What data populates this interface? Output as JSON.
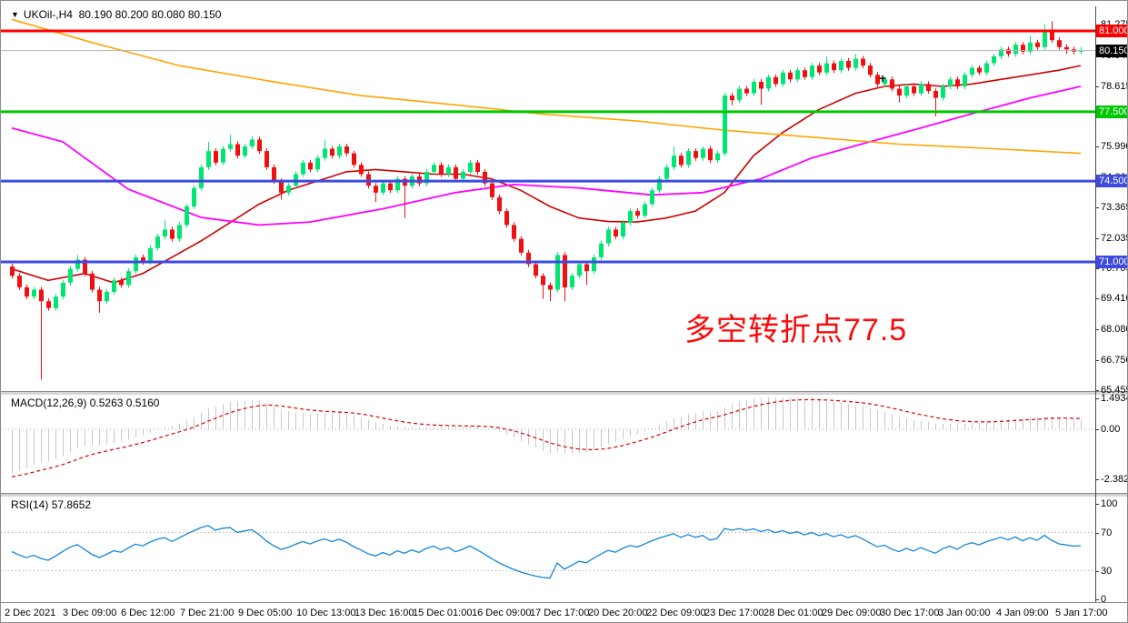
{
  "window": {
    "dropdown_icon": "▼",
    "symbol_title": "UKOil-,H4",
    "ohlc_readout": "80.190 80.200 80.080 80.150"
  },
  "main_chart": {
    "price_axis_ticks": [
      "81.275",
      "79.945",
      "78.615",
      "77.320",
      "75.990",
      "74.660",
      "73.365",
      "72.035",
      "70.705",
      "69.410",
      "68.080",
      "66.750",
      "65.455"
    ],
    "price_line_labels": [
      {
        "text": "81.000",
        "price": 81.0,
        "bg": "#FF0000"
      },
      {
        "text": "80.150",
        "price": 80.15,
        "bg": "#000000"
      },
      {
        "text": "77.500",
        "price": 77.5,
        "bg": "#00C800"
      },
      {
        "text": "74.500",
        "price": 74.5,
        "bg": "#3F4BDE"
      },
      {
        "text": "71.000",
        "price": 71.0,
        "bg": "#3F4BDE"
      }
    ],
    "annotation": {
      "text": "多空转折点77.5",
      "color": "#FA0A0A"
    },
    "plus_marker": "+"
  },
  "macd_panel": {
    "label": "MACD(12,26,9)",
    "values": "0.5263 0.5160",
    "axis_ticks": [
      "1.4934",
      "0.00",
      "-2.3824"
    ]
  },
  "rsi_panel": {
    "label": "RSI(14)",
    "value": "57.8652",
    "axis_ticks": [
      "100",
      "70",
      "30",
      "0"
    ]
  },
  "time_axis": {
    "labels": [
      "2 Dec 2021",
      "3 Dec 09:00",
      "6 Dec 12:00",
      "7 Dec 21:00",
      "9 Dec 05:00",
      "10 Dec 13:00",
      "13 Dec 16:00",
      "15 Dec 01:00",
      "16 Dec 09:00",
      "17 Dec 17:00",
      "20 Dec 20:00",
      "22 Dec 09:00",
      "23 Dec 17:00",
      "28 Dec 01:00",
      "29 Dec 09:00",
      "30 Dec 17:00",
      "3 Jan 00:00",
      "4 Jan 09:00",
      "5 Jan 17:00"
    ]
  },
  "chart_data": {
    "type": "candlestick",
    "symbol": "UKOil",
    "timeframe": "H4",
    "title": "UKOil-,H4 80.190 80.200 80.080 80.150",
    "price_range": [
      65.455,
      81.275
    ],
    "colors": {
      "bull": "#00E673",
      "bear": "#EF1010",
      "current_price_line": "#B4B4B4",
      "macd_hist": "#C8C8C8",
      "macd_signal": "#DD0000",
      "rsi_line": "#1585D8"
    },
    "h_lines": [
      {
        "price": 81.0,
        "color": "#FF0000",
        "width": 3
      },
      {
        "price": 77.5,
        "color": "#00C800",
        "width": 3
      },
      {
        "price": 74.5,
        "color": "#3F4BDE",
        "width": 3
      },
      {
        "price": 71.0,
        "color": "#3F4BDE",
        "width": 3
      }
    ],
    "current_price": 80.15,
    "candles_ohlc": [
      [
        70.8,
        70.92,
        70.28,
        70.4
      ],
      [
        70.4,
        70.52,
        69.78,
        69.9
      ],
      [
        69.9,
        70.02,
        69.38,
        69.5
      ],
      [
        69.5,
        69.92,
        69.38,
        69.8
      ],
      [
        69.8,
        69.92,
        65.9,
        69.3
      ],
      [
        69.3,
        69.42,
        68.88,
        69.0
      ],
      [
        69.0,
        69.62,
        68.88,
        69.5
      ],
      [
        69.5,
        70.22,
        69.38,
        70.1
      ],
      [
        70.1,
        70.82,
        69.98,
        70.7
      ],
      [
        70.7,
        71.3,
        70.58,
        71.1
      ],
      [
        71.1,
        71.22,
        70.38,
        70.5
      ],
      [
        70.5,
        70.62,
        69.68,
        69.8
      ],
      [
        69.8,
        69.92,
        68.8,
        69.3
      ],
      [
        69.3,
        69.82,
        69.18,
        69.7
      ],
      [
        69.7,
        70.32,
        69.58,
        70.2
      ],
      [
        70.2,
        70.32,
        69.88,
        70.0
      ],
      [
        70.0,
        70.72,
        69.88,
        70.6
      ],
      [
        70.6,
        71.32,
        70.48,
        71.2
      ],
      [
        71.2,
        71.32,
        70.88,
        71.0
      ],
      [
        71.0,
        71.72,
        70.88,
        71.6
      ],
      [
        71.6,
        72.22,
        71.48,
        72.1
      ],
      [
        72.1,
        72.8,
        71.98,
        72.4
      ],
      [
        72.4,
        72.52,
        71.88,
        72.0
      ],
      [
        72.0,
        72.72,
        71.88,
        72.6
      ],
      [
        72.6,
        73.52,
        72.48,
        73.4
      ],
      [
        73.4,
        74.32,
        73.28,
        74.2
      ],
      [
        74.2,
        75.22,
        74.08,
        75.1
      ],
      [
        75.1,
        76.2,
        74.98,
        75.8
      ],
      [
        75.8,
        75.92,
        75.18,
        75.3
      ],
      [
        75.3,
        76.02,
        75.18,
        75.9
      ],
      [
        75.9,
        76.5,
        75.78,
        76.1
      ],
      [
        76.1,
        76.22,
        75.48,
        75.6
      ],
      [
        75.6,
        76.12,
        75.48,
        76.0
      ],
      [
        76.0,
        76.42,
        75.88,
        76.3
      ],
      [
        76.3,
        76.42,
        75.68,
        75.8
      ],
      [
        75.8,
        75.92,
        74.98,
        75.1
      ],
      [
        75.1,
        75.22,
        74.38,
        74.5
      ],
      [
        74.5,
        74.62,
        73.7,
        74.0
      ],
      [
        74.0,
        74.42,
        73.88,
        74.3
      ],
      [
        74.3,
        74.92,
        74.18,
        74.8
      ],
      [
        74.8,
        75.42,
        74.68,
        75.3
      ],
      [
        75.3,
        75.42,
        74.88,
        75.0
      ],
      [
        75.0,
        75.62,
        74.88,
        75.5
      ],
      [
        75.5,
        76.3,
        75.38,
        75.9
      ],
      [
        75.9,
        76.02,
        75.48,
        75.6
      ],
      [
        75.6,
        76.12,
        75.48,
        76.0
      ],
      [
        76.0,
        76.12,
        75.58,
        75.7
      ],
      [
        75.7,
        75.82,
        75.08,
        75.2
      ],
      [
        75.2,
        75.32,
        74.68,
        74.8
      ],
      [
        74.8,
        74.92,
        74.18,
        74.3
      ],
      [
        74.3,
        74.42,
        73.6,
        74.0
      ],
      [
        74.0,
        74.52,
        73.88,
        74.4
      ],
      [
        74.4,
        74.52,
        73.98,
        74.1
      ],
      [
        74.1,
        74.72,
        73.98,
        74.6
      ],
      [
        74.6,
        74.72,
        72.9,
        74.3
      ],
      [
        74.3,
        74.82,
        74.18,
        74.7
      ],
      [
        74.7,
        74.82,
        74.28,
        74.4
      ],
      [
        74.4,
        75.02,
        74.28,
        74.9
      ],
      [
        74.9,
        75.32,
        74.78,
        75.2
      ],
      [
        75.2,
        75.32,
        74.68,
        74.8
      ],
      [
        74.8,
        75.22,
        74.68,
        75.1
      ],
      [
        75.1,
        75.22,
        74.48,
        74.6
      ],
      [
        74.6,
        75.02,
        74.48,
        74.9
      ],
      [
        74.9,
        75.42,
        74.78,
        75.3
      ],
      [
        75.3,
        75.42,
        74.78,
        74.9
      ],
      [
        74.9,
        75.02,
        74.28,
        74.4
      ],
      [
        74.4,
        74.52,
        73.68,
        73.8
      ],
      [
        73.8,
        73.92,
        73.08,
        73.2
      ],
      [
        73.2,
        73.32,
        72.48,
        72.6
      ],
      [
        72.6,
        72.72,
        71.88,
        72.0
      ],
      [
        72.0,
        72.12,
        71.28,
        71.4
      ],
      [
        71.4,
        71.52,
        70.78,
        70.9
      ],
      [
        70.9,
        71.02,
        70.28,
        70.4
      ],
      [
        70.4,
        70.52,
        69.4,
        70.0
      ],
      [
        70.0,
        70.12,
        69.3,
        69.8
      ],
      [
        69.8,
        71.42,
        69.68,
        71.3
      ],
      [
        71.3,
        71.42,
        69.3,
        69.9
      ],
      [
        69.9,
        70.52,
        69.78,
        70.4
      ],
      [
        70.4,
        71.02,
        70.28,
        70.9
      ],
      [
        70.9,
        71.02,
        70.0,
        70.6
      ],
      [
        70.6,
        71.32,
        70.48,
        71.2
      ],
      [
        71.2,
        71.92,
        71.08,
        71.8
      ],
      [
        71.8,
        72.52,
        71.68,
        72.4
      ],
      [
        72.4,
        72.52,
        71.98,
        72.1
      ],
      [
        72.1,
        72.82,
        71.98,
        72.7
      ],
      [
        72.7,
        73.32,
        72.58,
        73.2
      ],
      [
        73.2,
        73.32,
        72.88,
        73.0
      ],
      [
        73.0,
        73.62,
        72.88,
        73.5
      ],
      [
        73.5,
        74.22,
        73.38,
        74.1
      ],
      [
        74.1,
        74.72,
        73.98,
        74.6
      ],
      [
        74.6,
        75.22,
        74.48,
        75.1
      ],
      [
        75.1,
        76.0,
        74.98,
        75.6
      ],
      [
        75.6,
        75.72,
        75.08,
        75.2
      ],
      [
        75.2,
        75.92,
        75.08,
        75.8
      ],
      [
        75.8,
        75.92,
        75.38,
        75.5
      ],
      [
        75.5,
        76.02,
        75.38,
        75.9
      ],
      [
        75.9,
        76.02,
        75.28,
        75.4
      ],
      [
        75.4,
        75.82,
        75.28,
        75.7
      ],
      [
        75.7,
        78.32,
        75.58,
        78.2
      ],
      [
        78.2,
        78.32,
        77.78,
        78.0
      ],
      [
        78.0,
        78.62,
        77.88,
        78.5
      ],
      [
        78.5,
        78.62,
        78.18,
        78.3
      ],
      [
        78.3,
        78.92,
        78.18,
        78.8
      ],
      [
        78.8,
        78.92,
        77.8,
        78.5
      ],
      [
        78.5,
        79.12,
        78.38,
        79.0
      ],
      [
        79.0,
        79.12,
        78.58,
        78.7
      ],
      [
        78.7,
        79.32,
        78.58,
        79.2
      ],
      [
        79.2,
        79.32,
        78.78,
        78.9
      ],
      [
        78.9,
        79.42,
        78.78,
        79.3
      ],
      [
        79.3,
        79.42,
        78.88,
        79.0
      ],
      [
        79.0,
        79.62,
        78.88,
        79.5
      ],
      [
        79.5,
        79.62,
        79.08,
        79.2
      ],
      [
        79.2,
        79.9,
        79.08,
        79.6
      ],
      [
        79.6,
        79.72,
        79.18,
        79.3
      ],
      [
        79.3,
        79.82,
        79.18,
        79.7
      ],
      [
        79.7,
        79.82,
        79.28,
        79.4
      ],
      [
        79.4,
        80.0,
        79.28,
        79.8
      ],
      [
        79.8,
        79.92,
        79.38,
        79.5
      ],
      [
        79.5,
        79.62,
        78.98,
        79.1
      ],
      [
        79.1,
        79.22,
        78.58,
        78.7
      ],
      [
        78.7,
        79.02,
        78.58,
        78.9
      ],
      [
        78.9,
        79.02,
        78.38,
        78.5
      ],
      [
        78.5,
        78.62,
        77.9,
        78.2
      ],
      [
        78.2,
        78.72,
        78.08,
        78.6
      ],
      [
        78.6,
        78.72,
        78.18,
        78.3
      ],
      [
        78.3,
        78.82,
        78.18,
        78.7
      ],
      [
        78.7,
        78.82,
        78.28,
        78.4
      ],
      [
        78.4,
        78.52,
        77.3,
        78.1
      ],
      [
        78.1,
        78.72,
        77.98,
        78.6
      ],
      [
        78.6,
        79.02,
        78.48,
        78.9
      ],
      [
        78.9,
        79.02,
        78.48,
        78.6
      ],
      [
        78.6,
        79.22,
        78.48,
        79.1
      ],
      [
        79.1,
        79.52,
        78.98,
        79.4
      ],
      [
        79.4,
        79.52,
        79.08,
        79.2
      ],
      [
        79.2,
        79.72,
        79.08,
        79.6
      ],
      [
        79.6,
        80.02,
        79.48,
        79.9
      ],
      [
        79.9,
        80.32,
        79.78,
        80.2
      ],
      [
        80.2,
        80.32,
        79.88,
        80.0
      ],
      [
        80.0,
        80.52,
        79.88,
        80.4
      ],
      [
        80.4,
        80.52,
        79.98,
        80.1
      ],
      [
        80.1,
        80.8,
        79.98,
        80.5
      ],
      [
        80.5,
        80.62,
        80.18,
        80.3
      ],
      [
        80.3,
        81.3,
        80.18,
        81.0
      ],
      [
        81.0,
        81.42,
        80.48,
        80.6
      ],
      [
        80.6,
        80.72,
        80.18,
        80.3
      ],
      [
        80.3,
        80.42,
        80.0,
        80.2
      ],
      [
        80.2,
        80.32,
        79.98,
        80.1
      ],
      [
        80.1,
        80.3,
        80.0,
        80.15
      ]
    ],
    "moving_averages": [
      {
        "name": "ma-fast",
        "color": "#CD0000",
        "width": 1.6,
        "points": [
          [
            0,
            70.7
          ],
          [
            5,
            70.2
          ],
          [
            10,
            70.5
          ],
          [
            14,
            70.1
          ],
          [
            18,
            70.5
          ],
          [
            22,
            71.2
          ],
          [
            26,
            71.9
          ],
          [
            30,
            72.7
          ],
          [
            34,
            73.5
          ],
          [
            38,
            74.1
          ],
          [
            42,
            74.5
          ],
          [
            46,
            74.9
          ],
          [
            50,
            75.0
          ],
          [
            54,
            74.9
          ],
          [
            58,
            74.8
          ],
          [
            62,
            74.8
          ],
          [
            66,
            74.6
          ],
          [
            70,
            74.1
          ],
          [
            74,
            73.4
          ],
          [
            78,
            72.9
          ],
          [
            82,
            72.75
          ],
          [
            86,
            72.73
          ],
          [
            90,
            72.9
          ],
          [
            94,
            73.2
          ],
          [
            98,
            74.0
          ],
          [
            102,
            75.6
          ],
          [
            106,
            76.6
          ],
          [
            111,
            77.6
          ],
          [
            116,
            78.3
          ],
          [
            120,
            78.6
          ],
          [
            124,
            78.7
          ],
          [
            128,
            78.6
          ],
          [
            132,
            78.7
          ],
          [
            136,
            78.9
          ],
          [
            140,
            79.1
          ],
          [
            144,
            79.3
          ],
          [
            147,
            79.5
          ]
        ]
      },
      {
        "name": "ma-mid",
        "color": "#FF00FF",
        "width": 1.8,
        "points": [
          [
            0,
            76.8
          ],
          [
            7,
            76.2
          ],
          [
            16,
            74.15
          ],
          [
            26,
            72.93
          ],
          [
            34,
            72.6
          ],
          [
            41,
            72.73
          ],
          [
            51,
            73.3
          ],
          [
            61,
            74.0
          ],
          [
            69,
            74.35
          ],
          [
            78,
            74.2
          ],
          [
            88,
            73.9
          ],
          [
            95,
            74.0
          ],
          [
            103,
            74.6
          ],
          [
            110,
            75.5
          ],
          [
            118,
            76.2
          ],
          [
            125,
            76.8
          ],
          [
            133,
            77.5
          ],
          [
            140,
            78.1
          ],
          [
            147,
            78.6
          ]
        ]
      },
      {
        "name": "ma-slow",
        "color": "#FFA500",
        "width": 1.6,
        "points": [
          [
            0,
            81.5
          ],
          [
            11,
            80.5
          ],
          [
            23,
            79.5
          ],
          [
            36,
            78.8
          ],
          [
            48,
            78.2
          ],
          [
            61,
            77.8
          ],
          [
            73,
            77.4
          ],
          [
            86,
            77.1
          ],
          [
            98,
            76.7
          ],
          [
            110,
            76.4
          ],
          [
            122,
            76.1
          ],
          [
            135,
            75.9
          ],
          [
            147,
            75.7
          ]
        ]
      }
    ],
    "macd": {
      "parameters": [
        12,
        26,
        9
      ],
      "seeds": [
        69.6,
        71.98,
        -2.3
      ],
      "display_values": [
        0.5263,
        0.516
      ],
      "axis_range": [
        -2.3824,
        1.4934
      ]
    },
    "rsi": {
      "period": 14,
      "display_value": 57.8652,
      "levels": [
        70,
        30
      ],
      "axis_range": [
        0,
        100
      ]
    }
  }
}
